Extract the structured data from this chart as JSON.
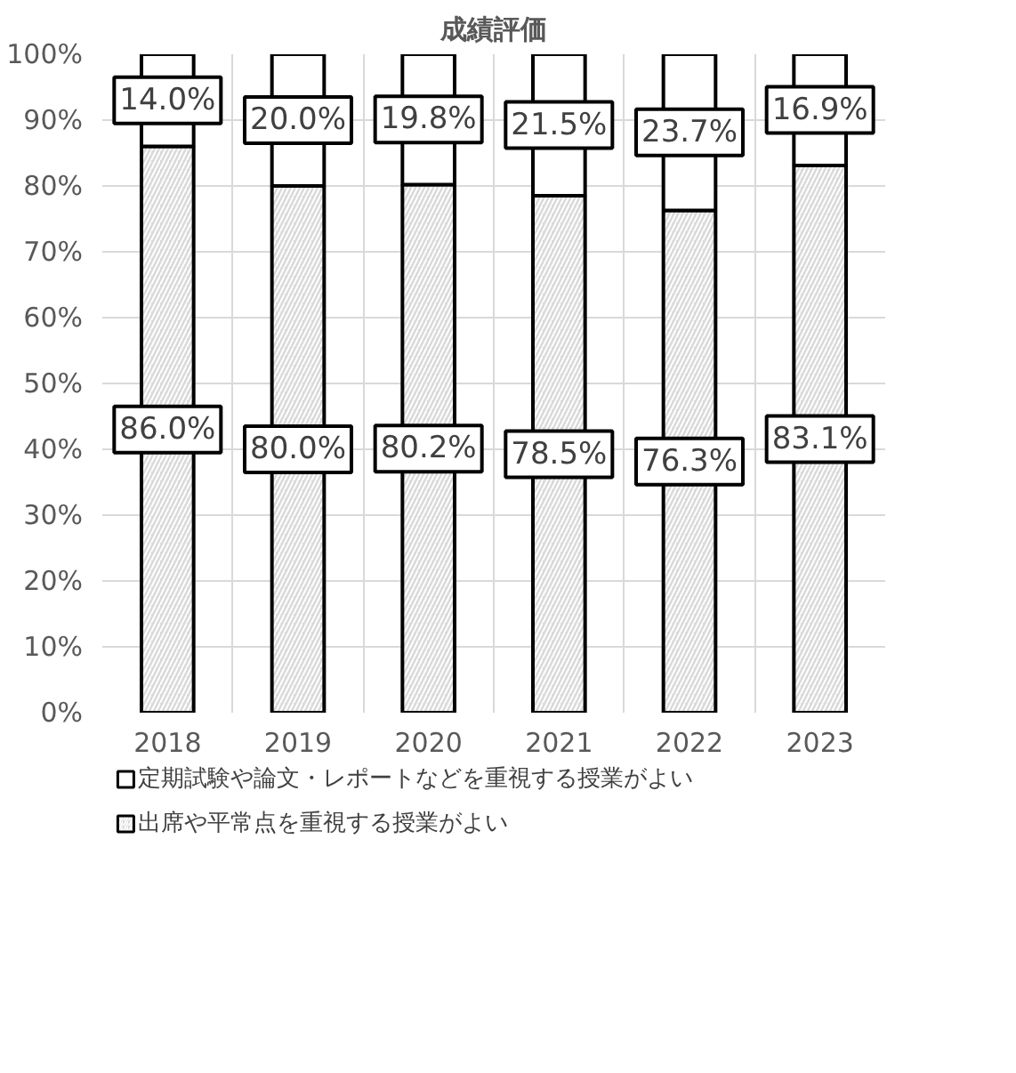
{
  "chart_data": {
    "type": "bar",
    "title": "成績評価",
    "stacked": true,
    "categories": [
      "2018",
      "2019",
      "2020",
      "2021",
      "2022",
      "2023"
    ],
    "series": [
      {
        "name": "出席や平常点を重視する授業がよい",
        "color": "#d9d9d9",
        "values": [
          86.0,
          80.0,
          80.2,
          78.5,
          76.3,
          83.1
        ],
        "value_labels": [
          "86.0%",
          "80.0%",
          "80.2%",
          "78.5%",
          "76.3%",
          "83.1%"
        ]
      },
      {
        "name": "定期試験や論文・レポートなどを重視する授業がよい",
        "color": "#ffffff",
        "values": [
          14.0,
          20.0,
          19.8,
          21.5,
          23.7,
          16.9
        ],
        "value_labels": [
          "14.0%",
          "20.0%",
          "19.8%",
          "21.5%",
          "23.7%",
          "16.9%"
        ]
      }
    ],
    "ylim": [
      0,
      100
    ],
    "yticks": [
      {
        "value": 0,
        "label": "0%"
      },
      {
        "value": 10,
        "label": "10%"
      },
      {
        "value": 20,
        "label": "20%"
      },
      {
        "value": 30,
        "label": "30%"
      },
      {
        "value": 40,
        "label": "40%"
      },
      {
        "value": 50,
        "label": "50%"
      },
      {
        "value": 60,
        "label": "60%"
      },
      {
        "value": 70,
        "label": "70%"
      },
      {
        "value": 80,
        "label": "80%"
      },
      {
        "value": 90,
        "label": "90%"
      },
      {
        "value": 100,
        "label": "100%"
      }
    ],
    "grid": true,
    "legend": "bottom"
  }
}
